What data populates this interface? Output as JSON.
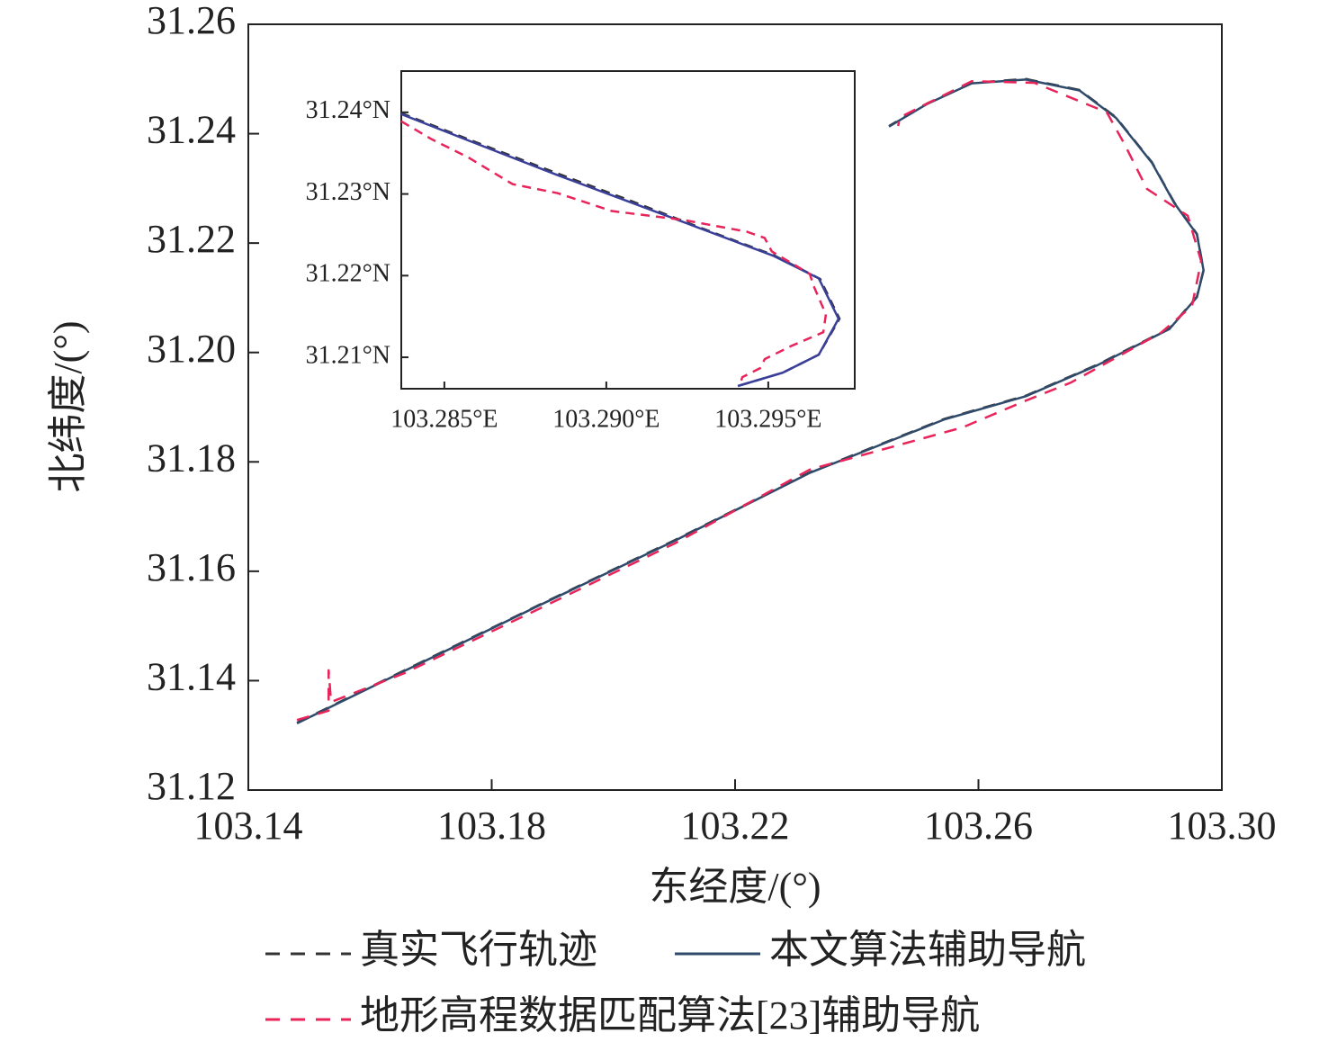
{
  "chart_data": [
    {
      "type": "line",
      "x_label": "东经度/(°)",
      "y_label": "北纬度/(°)",
      "xlim": [
        103.14,
        103.3
      ],
      "ylim": [
        31.12,
        31.26
      ],
      "xticks": [
        {
          "value": 103.14,
          "label": "103.14"
        },
        {
          "value": 103.18,
          "label": "103.18"
        },
        {
          "value": 103.22,
          "label": "103.22"
        },
        {
          "value": 103.26,
          "label": "103.26"
        },
        {
          "value": 103.3,
          "label": "103.30"
        }
      ],
      "yticks": [
        {
          "value": 31.12,
          "label": "31.12"
        },
        {
          "value": 31.14,
          "label": "31.14"
        },
        {
          "value": 31.16,
          "label": "31.16"
        },
        {
          "value": 31.18,
          "label": "31.18"
        },
        {
          "value": 31.2,
          "label": "31.20"
        },
        {
          "value": 31.22,
          "label": "31.22"
        },
        {
          "value": 31.24,
          "label": "31.24"
        },
        {
          "value": 31.26,
          "label": "31.26"
        }
      ],
      "grid": false,
      "legend": "bottom",
      "series": [
        {
          "name": "真实飞行轨迹",
          "color": "#333333",
          "linestyle": "dashed",
          "x": [
            103.148,
            103.1657,
            103.1879,
            103.2101,
            103.2323,
            103.2545,
            103.2678,
            103.2796,
            103.2914,
            103.2959,
            103.297,
            103.2959,
            103.2922,
            103.2885,
            103.2826,
            103.2766,
            103.2678,
            103.2589,
            103.2515,
            103.2453
          ],
          "values": [
            31.1323,
            31.1419,
            31.1539,
            31.1657,
            31.1781,
            31.1879,
            31.1921,
            31.1978,
            31.2044,
            31.2102,
            31.2151,
            31.2217,
            31.2274,
            31.2348,
            31.243,
            31.248,
            31.25,
            31.2493,
            31.2455,
            31.2414
          ]
        },
        {
          "name": "本文算法辅助导航",
          "color": "#2f4a6a",
          "linestyle": "solid",
          "x": [
            103.148,
            103.1657,
            103.1879,
            103.2101,
            103.2323,
            103.2545,
            103.2678,
            103.2796,
            103.2914,
            103.2959,
            103.297,
            103.2959,
            103.2922,
            103.2885,
            103.2826,
            103.2766,
            103.2678,
            103.2589,
            103.2515,
            103.2453
          ],
          "values": [
            31.1322,
            31.1418,
            31.1538,
            31.1656,
            31.178,
            31.1878,
            31.192,
            31.1977,
            31.2043,
            31.2101,
            31.215,
            31.2216,
            31.2273,
            31.2347,
            31.2429,
            31.2479,
            31.2499,
            31.2492,
            31.2454,
            31.2413
          ]
        },
        {
          "name": "地形高程数据匹配算法[23]辅助导航",
          "color": "#e8245a",
          "linestyle": "dashed",
          "x": [
            103.148,
            103.1532,
            103.1532,
            103.1536,
            103.1657,
            103.1879,
            103.2101,
            103.2323,
            103.2574,
            103.2678,
            103.2752,
            103.29,
            103.2951,
            103.2966,
            103.2944,
            103.2877,
            103.284,
            103.2811,
            103.2692,
            103.2589,
            103.2471,
            103.2468
          ],
          "values": [
            31.1328,
            31.1345,
            31.1419,
            31.1361,
            31.1414,
            31.1532,
            31.1651,
            31.1786,
            31.1863,
            31.1912,
            31.1945,
            31.2036,
            31.2085,
            31.2167,
            31.225,
            31.2299,
            31.2381,
            31.2439,
            31.2493,
            31.2496,
            31.243,
            31.2414
          ]
        }
      ]
    },
    {
      "type": "line",
      "xlim": [
        103.28367,
        103.29767
      ],
      "ylim": [
        31.20615,
        31.24505
      ],
      "xticks": [
        {
          "value": 103.285,
          "label": "103.285°E"
        },
        {
          "value": 103.29,
          "label": "103.290°E"
        },
        {
          "value": 103.295,
          "label": "103.295°E"
        }
      ],
      "yticks": [
        {
          "value": 31.21,
          "label": "31.21°N"
        },
        {
          "value": 31.22,
          "label": "31.22°N"
        },
        {
          "value": 31.23,
          "label": "31.23°N"
        },
        {
          "value": 31.24,
          "label": "31.24°N"
        }
      ],
      "grid": false,
      "series": [
        {
          "name": "真实飞行轨迹",
          "color": "#333333",
          "linestyle": "dashed",
          "x": [
            103.28367,
            103.286,
            103.2885,
            103.29073,
            103.29295,
            103.29517,
            103.2966,
            103.2972,
            103.29656,
            103.29545,
            103.29406
          ],
          "values": [
            31.2399,
            31.2363,
            31.2325,
            31.2292,
            31.2258,
            31.2225,
            31.2196,
            31.21472,
            31.21032,
            31.20812,
            31.20648
          ]
        },
        {
          "name": "本文算法辅助导航",
          "color": "#3a3f9a",
          "linestyle": "solid",
          "x": [
            103.28367,
            103.286,
            103.2885,
            103.29073,
            103.29295,
            103.29517,
            103.29656,
            103.29717,
            103.29656,
            103.29545,
            103.29406
          ],
          "values": [
            31.23978,
            31.23615,
            31.2323,
            31.22901,
            31.22571,
            31.22241,
            31.21966,
            31.21472,
            31.21032,
            31.20812,
            31.20648
          ]
        },
        {
          "name": "地形高程数据匹配算法[23]辅助导航",
          "color": "#e8245a",
          "linestyle": "dashed",
          "x": [
            103.28367,
            103.28461,
            103.28573,
            103.28711,
            103.2885,
            103.29017,
            103.29239,
            103.29434,
            103.29489,
            103.29511,
            103.29628,
            103.29642,
            103.29678,
            103.2967,
            103.29573,
            103.29489,
            103.29475,
            103.2942,
            103.29411
          ],
          "values": [
            31.2389,
            31.2367,
            31.2345,
            31.2312,
            31.2301,
            31.22791,
            31.22681,
            31.22538,
            31.22461,
            31.22296,
            31.22021,
            31.21856,
            31.21527,
            31.21307,
            31.21142,
            31.20977,
            31.20867,
            31.20757,
            31.20648
          ]
        }
      ]
    }
  ]
}
